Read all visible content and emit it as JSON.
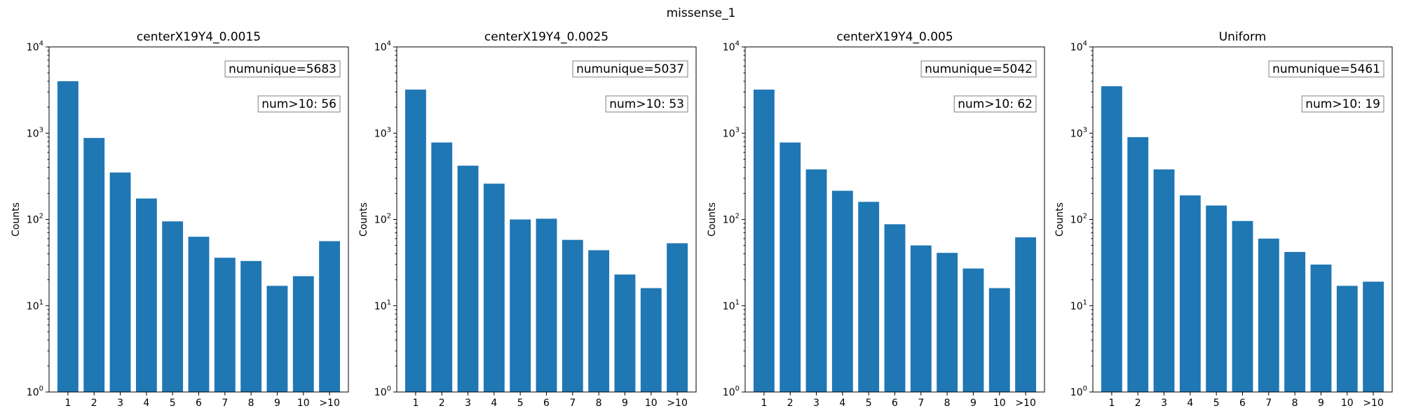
{
  "suptitle": "missense_1",
  "colors": {
    "bar": "#1f77b4"
  },
  "chart_data": [
    {
      "type": "bar",
      "title": "centerX19Y4_0.0015",
      "ylabel": "Counts",
      "yscale": "log",
      "ylim": [
        1,
        10000
      ],
      "yticks": [
        {
          "value": 1,
          "exp": "0"
        },
        {
          "value": 10,
          "exp": "1"
        },
        {
          "value": 100,
          "exp": "2"
        },
        {
          "value": 1000,
          "exp": "3"
        },
        {
          "value": 10000,
          "exp": "4"
        }
      ],
      "categories": [
        "1",
        "2",
        "3",
        "4",
        "5",
        "6",
        "7",
        "8",
        "9",
        "10",
        ">10"
      ],
      "values": [
        4000,
        880,
        350,
        175,
        95,
        63,
        36,
        33,
        17,
        22,
        56
      ],
      "annotations": [
        "numunique=5683",
        "num>10: 56"
      ]
    },
    {
      "type": "bar",
      "title": "centerX19Y4_0.0025",
      "ylabel": "Counts",
      "yscale": "log",
      "ylim": [
        1,
        10000
      ],
      "yticks": [
        {
          "value": 1,
          "exp": "0"
        },
        {
          "value": 10,
          "exp": "1"
        },
        {
          "value": 100,
          "exp": "2"
        },
        {
          "value": 1000,
          "exp": "3"
        },
        {
          "value": 10000,
          "exp": "4"
        }
      ],
      "categories": [
        "1",
        "2",
        "3",
        "4",
        "5",
        "6",
        "7",
        "8",
        "9",
        "10",
        ">10"
      ],
      "values": [
        3200,
        780,
        420,
        260,
        100,
        102,
        58,
        44,
        23,
        16,
        53
      ],
      "annotations": [
        "numunique=5037",
        "num>10: 53"
      ]
    },
    {
      "type": "bar",
      "title": "centerX19Y4_0.005",
      "ylabel": "Counts",
      "yscale": "log",
      "ylim": [
        1,
        10000
      ],
      "yticks": [
        {
          "value": 1,
          "exp": "0"
        },
        {
          "value": 10,
          "exp": "1"
        },
        {
          "value": 100,
          "exp": "2"
        },
        {
          "value": 1000,
          "exp": "3"
        },
        {
          "value": 10000,
          "exp": "4"
        }
      ],
      "categories": [
        "1",
        "2",
        "3",
        "4",
        "5",
        "6",
        "7",
        "8",
        "9",
        "10",
        ">10"
      ],
      "values": [
        3200,
        780,
        380,
        215,
        160,
        88,
        50,
        41,
        27,
        16,
        62
      ],
      "annotations": [
        "numunique=5042",
        "num>10: 62"
      ]
    },
    {
      "type": "bar",
      "title": "Uniform",
      "ylabel": "Counts",
      "yscale": "log",
      "ylim": [
        1,
        10000
      ],
      "yticks": [
        {
          "value": 1,
          "exp": "0"
        },
        {
          "value": 10,
          "exp": "1"
        },
        {
          "value": 100,
          "exp": "2"
        },
        {
          "value": 1000,
          "exp": "3"
        },
        {
          "value": 10000,
          "exp": "4"
        }
      ],
      "categories": [
        "1",
        "2",
        "3",
        "4",
        "5",
        "6",
        "7",
        "8",
        "9",
        "10",
        ">10"
      ],
      "values": [
        3500,
        900,
        380,
        190,
        145,
        96,
        60,
        42,
        30,
        17,
        19
      ],
      "annotations": [
        "numunique=5461",
        "num>10: 19"
      ]
    }
  ]
}
